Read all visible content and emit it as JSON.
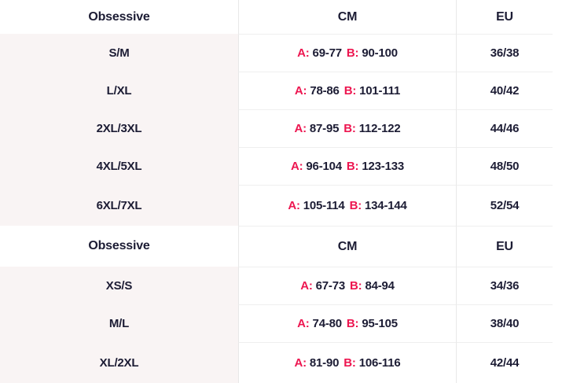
{
  "colors": {
    "accent": "#ed1650",
    "text": "#1c1c34",
    "left-bg": "#f9f4f4"
  },
  "tables": [
    {
      "headers": [
        "Obsessive",
        "CM",
        "EU"
      ],
      "rows": [
        {
          "size": "S/M",
          "a_label": "A:",
          "a_value": "69-77",
          "b_label": "B:",
          "b_value": "90-100",
          "eu": "36/38"
        },
        {
          "size": "L/XL",
          "a_label": "A:",
          "a_value": "78-86",
          "b_label": "B:",
          "b_value": "101-111",
          "eu": "40/42"
        },
        {
          "size": "2XL/3XL",
          "a_label": "A:",
          "a_value": "87-95",
          "b_label": "B:",
          "b_value": "112-122",
          "eu": "44/46"
        },
        {
          "size": "4XL/5XL",
          "a_label": "A:",
          "a_value": "96-104",
          "b_label": "B:",
          "b_value": "123-133",
          "eu": "48/50"
        },
        {
          "size": "6XL/7XL",
          "a_label": "A:",
          "a_value": "105-114",
          "b_label": "B:",
          "b_value": "134-144",
          "eu": "52/54"
        }
      ]
    },
    {
      "headers": [
        "Obsessive",
        "CM",
        "EU"
      ],
      "rows": [
        {
          "size": "XS/S",
          "a_label": "A:",
          "a_value": "67-73",
          "b_label": "B:",
          "b_value": "84-94",
          "eu": "34/36"
        },
        {
          "size": "M/L",
          "a_label": "A:",
          "a_value": "74-80",
          "b_label": "B:",
          "b_value": "95-105",
          "eu": "38/40"
        },
        {
          "size": "XL/2XL",
          "a_label": "A:",
          "a_value": "81-90",
          "b_label": "B:",
          "b_value": "106-116",
          "eu": "42/44"
        }
      ]
    }
  ]
}
